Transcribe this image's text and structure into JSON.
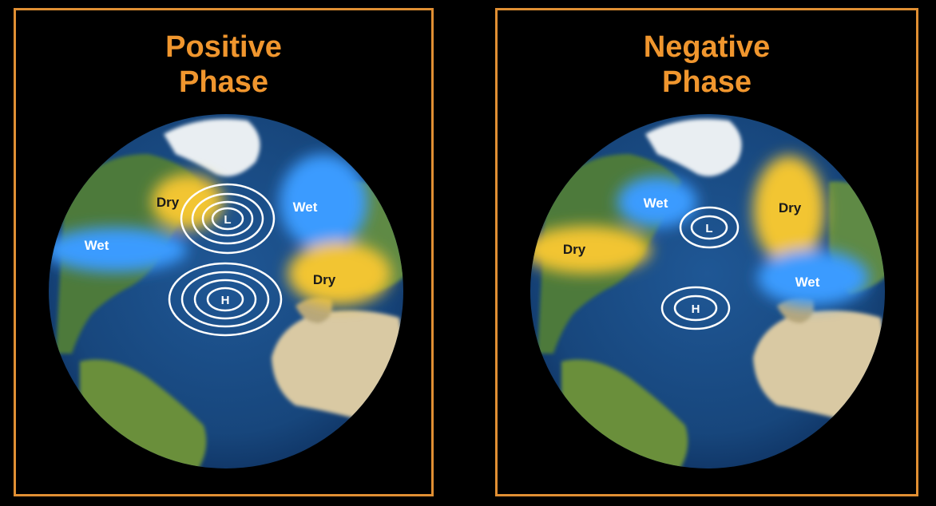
{
  "colors": {
    "frame": "#e08f33",
    "title": "#f0962e",
    "ocean": "#1d4f86",
    "wet": "#3a9bff",
    "dry": "#f2c531",
    "pressure_ring": "#ffffff"
  },
  "panels": [
    {
      "id": "positive",
      "title_line1": "Positive",
      "title_line2": "Phase",
      "labels": {
        "dry_north_america": "Dry",
        "wet_east_us": "Wet",
        "wet_north_europe": "Wet",
        "dry_south_europe": "Dry"
      },
      "low": "L",
      "high": "H"
    },
    {
      "id": "negative",
      "title_line1": "Negative",
      "title_line2": "Phase",
      "labels": {
        "wet_north_america": "Wet",
        "dry_east_us": "Dry",
        "dry_north_europe": "Dry",
        "wet_south_europe": "Wet"
      },
      "low": "L",
      "high": "H"
    }
  ]
}
